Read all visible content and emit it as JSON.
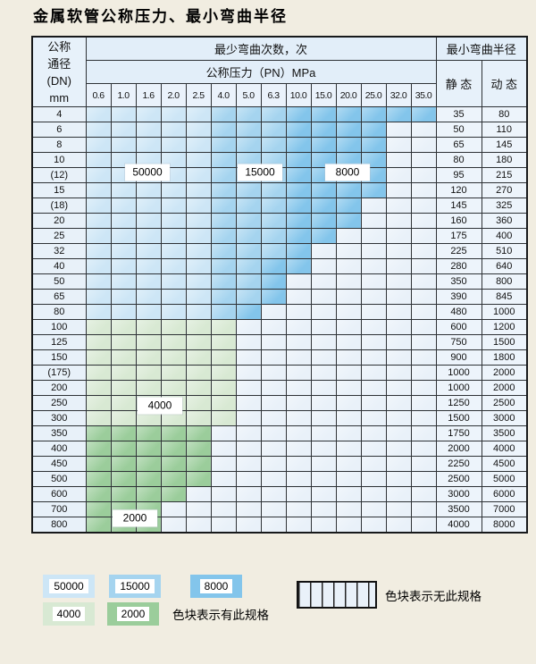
{
  "title": "金属软管公称压力、最小弯曲半径",
  "table": {
    "header": {
      "dn_lines": [
        "公称",
        "通径",
        "(DN)",
        "mm"
      ],
      "bend_cycles_label": "最少弯曲次数，次",
      "pressure_label": "公称压力（PN）MPa",
      "min_radius_label": "最小弯曲半径",
      "static_label": "静 态",
      "dynamic_label": "动 态",
      "pressures": [
        "0.6",
        "1.0",
        "1.6",
        "2.0",
        "2.5",
        "4.0",
        "5.0",
        "6.3",
        "10.0",
        "15.0",
        "20.0",
        "25.0",
        "32.0",
        "35.0"
      ]
    },
    "cell_codes_meaning": {
      "b1": "50000次",
      "b2": "15000次",
      "b3": "8000次",
      "g1": "4000次",
      "g2": "2000次",
      "h": "无此规格"
    },
    "rows": [
      {
        "dn": "4",
        "cells": [
          "b1",
          "b1",
          "b1",
          "b1",
          "b1",
          "b2",
          "b2",
          "b2",
          "b3",
          "b3",
          "b3",
          "b3",
          "b3",
          "b3"
        ],
        "static": "35",
        "dynamic": "80"
      },
      {
        "dn": "6",
        "cells": [
          "b1",
          "b1",
          "b1",
          "b1",
          "b1",
          "b2",
          "b2",
          "b2",
          "b3",
          "b3",
          "b3",
          "b3",
          "h",
          "h"
        ],
        "static": "50",
        "dynamic": "110"
      },
      {
        "dn": "8",
        "cells": [
          "b1",
          "b1",
          "b1",
          "b1",
          "b1",
          "b2",
          "b2",
          "b2",
          "b3",
          "b3",
          "b3",
          "b3",
          "h",
          "h"
        ],
        "static": "65",
        "dynamic": "145"
      },
      {
        "dn": "10",
        "cells": [
          "b1",
          "b1",
          "b1",
          "b1",
          "b1",
          "b2",
          "b2",
          "b2",
          "b3",
          "b3",
          "b3",
          "b3",
          "h",
          "h"
        ],
        "static": "80",
        "dynamic": "180"
      },
      {
        "dn": "(12)",
        "cells": [
          "b1",
          "b1",
          "b1",
          "b1",
          "b1",
          "b2",
          "b2",
          "b2",
          "b3",
          "b3",
          "b3",
          "b3",
          "h",
          "h"
        ],
        "static": "95",
        "dynamic": "215"
      },
      {
        "dn": "15",
        "cells": [
          "b1",
          "b1",
          "b1",
          "b1",
          "b1",
          "b2",
          "b2",
          "b2",
          "b3",
          "b3",
          "b3",
          "b3",
          "h",
          "h"
        ],
        "static": "120",
        "dynamic": "270"
      },
      {
        "dn": "(18)",
        "cells": [
          "b1",
          "b1",
          "b1",
          "b1",
          "b1",
          "b2",
          "b2",
          "b2",
          "b3",
          "b3",
          "b3",
          "h",
          "h",
          "h"
        ],
        "static": "145",
        "dynamic": "325"
      },
      {
        "dn": "20",
        "cells": [
          "b1",
          "b1",
          "b1",
          "b1",
          "b1",
          "b2",
          "b2",
          "b2",
          "b3",
          "b3",
          "b3",
          "h",
          "h",
          "h"
        ],
        "static": "160",
        "dynamic": "360"
      },
      {
        "dn": "25",
        "cells": [
          "b1",
          "b1",
          "b1",
          "b1",
          "b1",
          "b2",
          "b2",
          "b2",
          "b3",
          "b3",
          "h",
          "h",
          "h",
          "h"
        ],
        "static": "175",
        "dynamic": "400"
      },
      {
        "dn": "32",
        "cells": [
          "b1",
          "b1",
          "b1",
          "b1",
          "b1",
          "b2",
          "b2",
          "b2",
          "b3",
          "h",
          "h",
          "h",
          "h",
          "h"
        ],
        "static": "225",
        "dynamic": "510"
      },
      {
        "dn": "40",
        "cells": [
          "b1",
          "b1",
          "b1",
          "b1",
          "b1",
          "b2",
          "b2",
          "b3",
          "b3",
          "h",
          "h",
          "h",
          "h",
          "h"
        ],
        "static": "280",
        "dynamic": "640"
      },
      {
        "dn": "50",
        "cells": [
          "b1",
          "b1",
          "b1",
          "b1",
          "b1",
          "b2",
          "b2",
          "b3",
          "h",
          "h",
          "h",
          "h",
          "h",
          "h"
        ],
        "static": "350",
        "dynamic": "800"
      },
      {
        "dn": "65",
        "cells": [
          "b1",
          "b1",
          "b1",
          "b1",
          "b1",
          "b2",
          "b2",
          "b3",
          "h",
          "h",
          "h",
          "h",
          "h",
          "h"
        ],
        "static": "390",
        "dynamic": "845"
      },
      {
        "dn": "80",
        "cells": [
          "b1",
          "b1",
          "b1",
          "b1",
          "b1",
          "b2",
          "b3",
          "h",
          "h",
          "h",
          "h",
          "h",
          "h",
          "h"
        ],
        "static": "480",
        "dynamic": "1000"
      },
      {
        "dn": "100",
        "cells": [
          "g1",
          "g1",
          "g1",
          "g1",
          "g1",
          "g1",
          "h",
          "h",
          "h",
          "h",
          "h",
          "h",
          "h",
          "h"
        ],
        "static": "600",
        "dynamic": "1200"
      },
      {
        "dn": "125",
        "cells": [
          "g1",
          "g1",
          "g1",
          "g1",
          "g1",
          "g1",
          "h",
          "h",
          "h",
          "h",
          "h",
          "h",
          "h",
          "h"
        ],
        "static": "750",
        "dynamic": "1500"
      },
      {
        "dn": "150",
        "cells": [
          "g1",
          "g1",
          "g1",
          "g1",
          "g1",
          "g1",
          "h",
          "h",
          "h",
          "h",
          "h",
          "h",
          "h",
          "h"
        ],
        "static": "900",
        "dynamic": "1800"
      },
      {
        "dn": "(175)",
        "cells": [
          "g1",
          "g1",
          "g1",
          "g1",
          "g1",
          "g1",
          "h",
          "h",
          "h",
          "h",
          "h",
          "h",
          "h",
          "h"
        ],
        "static": "1000",
        "dynamic": "2000"
      },
      {
        "dn": "200",
        "cells": [
          "g1",
          "g1",
          "g1",
          "g1",
          "g1",
          "g1",
          "h",
          "h",
          "h",
          "h",
          "h",
          "h",
          "h",
          "h"
        ],
        "static": "1000",
        "dynamic": "2000"
      },
      {
        "dn": "250",
        "cells": [
          "g1",
          "g1",
          "g1",
          "g1",
          "g1",
          "g1",
          "h",
          "h",
          "h",
          "h",
          "h",
          "h",
          "h",
          "h"
        ],
        "static": "1250",
        "dynamic": "2500"
      },
      {
        "dn": "300",
        "cells": [
          "g1",
          "g1",
          "g1",
          "g1",
          "g1",
          "g1",
          "h",
          "h",
          "h",
          "h",
          "h",
          "h",
          "h",
          "h"
        ],
        "static": "1500",
        "dynamic": "3000"
      },
      {
        "dn": "350",
        "cells": [
          "g2",
          "g2",
          "g2",
          "g2",
          "g2",
          "h",
          "h",
          "h",
          "h",
          "h",
          "h",
          "h",
          "h",
          "h"
        ],
        "static": "1750",
        "dynamic": "3500"
      },
      {
        "dn": "400",
        "cells": [
          "g2",
          "g2",
          "g2",
          "g2",
          "g2",
          "h",
          "h",
          "h",
          "h",
          "h",
          "h",
          "h",
          "h",
          "h"
        ],
        "static": "2000",
        "dynamic": "4000"
      },
      {
        "dn": "450",
        "cells": [
          "g2",
          "g2",
          "g2",
          "g2",
          "g2",
          "h",
          "h",
          "h",
          "h",
          "h",
          "h",
          "h",
          "h",
          "h"
        ],
        "static": "2250",
        "dynamic": "4500"
      },
      {
        "dn": "500",
        "cells": [
          "g2",
          "g2",
          "g2",
          "g2",
          "g2",
          "h",
          "h",
          "h",
          "h",
          "h",
          "h",
          "h",
          "h",
          "h"
        ],
        "static": "2500",
        "dynamic": "5000"
      },
      {
        "dn": "600",
        "cells": [
          "g2",
          "g2",
          "g2",
          "g2",
          "h",
          "h",
          "h",
          "h",
          "h",
          "h",
          "h",
          "h",
          "h",
          "h"
        ],
        "static": "3000",
        "dynamic": "6000"
      },
      {
        "dn": "700",
        "cells": [
          "g2",
          "g2",
          "g2",
          "h",
          "h",
          "h",
          "h",
          "h",
          "h",
          "h",
          "h",
          "h",
          "h",
          "h"
        ],
        "static": "3500",
        "dynamic": "7000"
      },
      {
        "dn": "800",
        "cells": [
          "g2",
          "g2",
          "g2",
          "h",
          "h",
          "h",
          "h",
          "h",
          "h",
          "h",
          "h",
          "h",
          "h",
          "h"
        ],
        "static": "4000",
        "dynamic": "8000"
      }
    ],
    "band_labels": [
      {
        "text": "50000",
        "row_index": 3,
        "col_start": 1,
        "col_end": 3,
        "anchor": "row-bottom"
      },
      {
        "text": "15000",
        "row_index": 3,
        "col_start": 6,
        "col_end": 7,
        "anchor": "row-bottom"
      },
      {
        "text": "8000",
        "row_index": 3,
        "col_start": 9,
        "col_end": 11,
        "anchor": "row-bottom"
      },
      {
        "text": "4000",
        "row_index": 18,
        "col_start": 2,
        "col_end": 3,
        "anchor": "row-middle"
      },
      {
        "text": "2000",
        "row_index": 25,
        "col_start": 1,
        "col_end": 2,
        "anchor": "row-middle"
      }
    ]
  },
  "legend": {
    "items": [
      {
        "value": "50000",
        "color_key": "b1"
      },
      {
        "value": "15000",
        "color_key": "b2"
      },
      {
        "value": "8000",
        "color_key": "b3"
      },
      {
        "value": "4000",
        "color_key": "g1"
      },
      {
        "value": "2000",
        "color_key": "g2"
      }
    ],
    "has_spec_text": "色块表示有此规格",
    "no_spec_text": "色块表示无此规格"
  },
  "colors": {
    "cycles_50000": "#cde6f6",
    "cycles_15000": "#a5d4ef",
    "cycles_8000": "#83c5eb",
    "cycles_4000": "#d8e9d3",
    "cycles_2000": "#9bcd9b",
    "no_spec_bg": "#e9f1f9",
    "page_bg": "#f1ede1"
  }
}
